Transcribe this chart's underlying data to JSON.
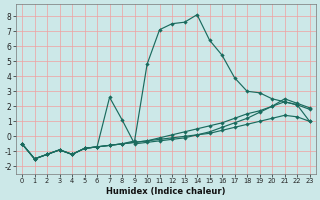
{
  "xlabel": "Humidex (Indice chaleur)",
  "bg_color": "#cce8e8",
  "grid_color": "#f0a0a0",
  "line_color": "#1a6b5e",
  "xlim": [
    -0.5,
    23.5
  ],
  "ylim": [
    -2.5,
    8.8
  ],
  "yticks": [
    -2,
    -1,
    0,
    1,
    2,
    3,
    4,
    5,
    6,
    7,
    8
  ],
  "xticks": [
    0,
    1,
    2,
    3,
    4,
    5,
    6,
    7,
    8,
    9,
    10,
    11,
    12,
    13,
    14,
    15,
    16,
    17,
    18,
    19,
    20,
    21,
    22,
    23
  ],
  "line_main_x": [
    0,
    1,
    2,
    3,
    4,
    5,
    6,
    7,
    8,
    9,
    10,
    11,
    12,
    13,
    14,
    15,
    16,
    17,
    18,
    19,
    20,
    21,
    22,
    23
  ],
  "line_main_y": [
    -0.5,
    -1.5,
    -1.2,
    -0.9,
    -1.2,
    -0.8,
    -0.7,
    -0.6,
    -0.5,
    -0.3,
    4.8,
    7.1,
    7.5,
    7.6,
    8.1,
    6.4,
    5.4,
    3.9,
    3.0,
    2.9,
    2.5,
    2.3,
    2.1,
    1.0
  ],
  "line_bump_x": [
    0,
    1,
    2,
    3,
    4,
    5,
    6,
    7,
    8,
    9,
    10,
    11,
    12,
    13,
    14,
    15,
    16,
    17,
    18,
    19,
    20,
    21,
    22,
    23
  ],
  "line_bump_y": [
    -0.5,
    -1.5,
    -1.2,
    -0.9,
    -1.2,
    -0.8,
    -0.7,
    2.6,
    1.1,
    -0.5,
    -0.4,
    -0.3,
    -0.2,
    -0.1,
    0.1,
    0.3,
    0.6,
    0.9,
    1.2,
    1.6,
    2.0,
    2.5,
    2.2,
    1.9
  ],
  "line_rise1_x": [
    0,
    1,
    2,
    3,
    4,
    5,
    6,
    7,
    8,
    9,
    10,
    11,
    12,
    13,
    14,
    15,
    16,
    17,
    18,
    19,
    20,
    21,
    22,
    23
  ],
  "line_rise1_y": [
    -0.5,
    -1.5,
    -1.2,
    -0.9,
    -1.2,
    -0.8,
    -0.7,
    -0.6,
    -0.5,
    -0.4,
    -0.3,
    -0.1,
    0.1,
    0.3,
    0.5,
    0.7,
    0.9,
    1.2,
    1.5,
    1.7,
    2.0,
    2.3,
    2.1,
    1.8
  ],
  "line_rise2_x": [
    0,
    1,
    2,
    3,
    4,
    5,
    6,
    7,
    8,
    9,
    10,
    11,
    12,
    13,
    14,
    15,
    16,
    17,
    18,
    19,
    20,
    21,
    22,
    23
  ],
  "line_rise2_y": [
    -0.5,
    -1.5,
    -1.2,
    -0.9,
    -1.2,
    -0.8,
    -0.7,
    -0.6,
    -0.5,
    -0.4,
    -0.3,
    -0.2,
    -0.1,
    0.0,
    0.1,
    0.2,
    0.4,
    0.6,
    0.8,
    1.0,
    1.2,
    1.4,
    1.3,
    1.0
  ]
}
